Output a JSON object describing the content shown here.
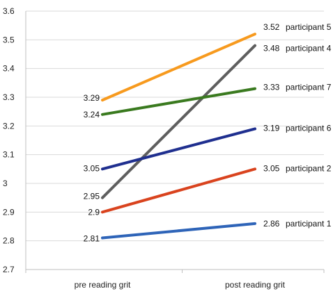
{
  "chart_data": {
    "type": "line",
    "title": "",
    "xlabel": "",
    "ylabel": "",
    "categories": [
      "pre reading grit",
      "post reading grit"
    ],
    "ylim": [
      2.7,
      3.6
    ],
    "yticks": [
      "2.7",
      "2.8",
      "2.9",
      "3",
      "3.1",
      "3.2",
      "3.3",
      "3.4",
      "3.5",
      "3.6"
    ],
    "grid": true,
    "legend": "none",
    "series": [
      {
        "name": "participant 5",
        "values": [
          3.29,
          3.52
        ],
        "labels": [
          "3.29",
          "3.52"
        ],
        "color": "#f79a1e"
      },
      {
        "name": "participant 4",
        "values": [
          2.95,
          3.48
        ],
        "labels": [
          "2.95",
          "3.48"
        ],
        "color": "#5e5e5e"
      },
      {
        "name": "participant 7",
        "values": [
          3.24,
          3.33
        ],
        "labels": [
          "3.24",
          "3.33"
        ],
        "color": "#3a7a1f"
      },
      {
        "name": "participant 6",
        "values": [
          3.05,
          3.19
        ],
        "labels": [
          "3.05",
          "3.19"
        ],
        "color": "#1f2f8f"
      },
      {
        "name": "participant 2",
        "values": [
          2.9,
          3.05
        ],
        "labels": [
          "2.9",
          "3.05"
        ],
        "color": "#d9431e"
      },
      {
        "name": "participant 1",
        "values": [
          2.81,
          2.86
        ],
        "labels": [
          "2.81",
          "2.86"
        ],
        "color": "#2e64b8"
      }
    ]
  }
}
